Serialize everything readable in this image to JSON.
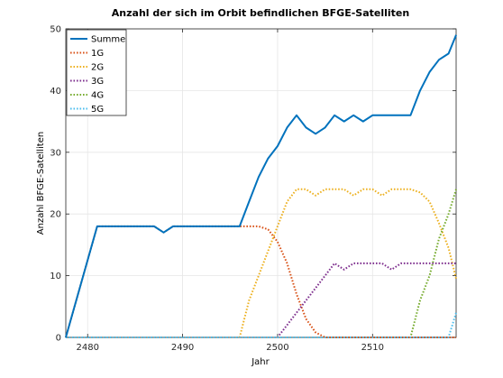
{
  "chart_data": {
    "type": "line",
    "title": "Anzahl der sich im Orbit befindlichen BFGE-Satelliten",
    "xlabel": "Jahr",
    "ylabel": "Anzahl BFGE-Satelliten",
    "xlim": [
      2477.7,
      2518.8
    ],
    "ylim": [
      0,
      50
    ],
    "xticks": [
      2480,
      2490,
      2500,
      2510
    ],
    "yticks": [
      0,
      10,
      20,
      30,
      40,
      50
    ],
    "grid": true,
    "legend_position": "top-left",
    "series": [
      {
        "name": "Summe",
        "color": "#0072BD",
        "style": "solid",
        "x": [
          2477.7,
          2481,
          2482,
          2483,
          2484,
          2485,
          2486,
          2487,
          2488,
          2489,
          2490,
          2491,
          2492,
          2493,
          2494,
          2495,
          2496,
          2497,
          2498,
          2499,
          2500,
          2501,
          2502,
          2503,
          2504,
          2505,
          2506,
          2507,
          2508,
          2509,
          2510,
          2511,
          2512,
          2513,
          2514,
          2515,
          2516,
          2517,
          2518,
          2518.8
        ],
        "y": [
          0,
          18,
          18,
          18,
          18,
          18,
          18,
          18,
          17,
          18,
          18,
          18,
          18,
          18,
          18,
          18,
          18,
          22,
          26,
          29,
          31,
          34,
          36,
          34,
          33,
          34,
          36,
          35,
          36,
          35,
          36,
          36,
          36,
          36,
          36,
          40,
          43,
          45,
          46,
          49
        ]
      },
      {
        "name": "1G",
        "color": "#D95319",
        "style": "dotted",
        "x": [
          2477.7,
          2481,
          2487,
          2488,
          2489,
          2495,
          2498,
          2499,
          2500,
          2501,
          2502,
          2503,
          2504,
          2505,
          2518.8
        ],
        "y": [
          0,
          18,
          18,
          17,
          18,
          18,
          18,
          17.5,
          15.5,
          12,
          7,
          3,
          0.8,
          0,
          0
        ]
      },
      {
        "name": "2G",
        "color": "#EDB120",
        "style": "dotted",
        "x": [
          2477.7,
          2496,
          2497,
          2498,
          2499,
          2500,
          2501,
          2502,
          2503,
          2504,
          2505,
          2506,
          2507,
          2508,
          2509,
          2510,
          2511,
          2512,
          2513,
          2514,
          2515,
          2516,
          2517,
          2518,
          2518.8
        ],
        "y": [
          0,
          0,
          6,
          10,
          14,
          18,
          22,
          24,
          24,
          23,
          24,
          24,
          24,
          23,
          24,
          24,
          23,
          24,
          24,
          24,
          23.5,
          22,
          18.5,
          14.5,
          9.5
        ]
      },
      {
        "name": "3G",
        "color": "#7E2F8E",
        "style": "dotted",
        "x": [
          2477.7,
          2500,
          2501,
          2502,
          2503,
          2504,
          2505,
          2506,
          2507,
          2508,
          2509,
          2510,
          2511,
          2512,
          2513,
          2514,
          2515,
          2516,
          2517,
          2518,
          2518.8
        ],
        "y": [
          0,
          0,
          2,
          4,
          6,
          8,
          10,
          12,
          11,
          12,
          12,
          12,
          12,
          11,
          12,
          12,
          12,
          12,
          12,
          12,
          12
        ]
      },
      {
        "name": "4G",
        "color": "#77AC30",
        "style": "dotted",
        "x": [
          2477.7,
          2514,
          2515,
          2516,
          2517,
          2518,
          2518.8
        ],
        "y": [
          0,
          0,
          6,
          10,
          16,
          20,
          24
        ]
      },
      {
        "name": "5G",
        "color": "#4DBEEE",
        "style": "dotted",
        "x": [
          2477.7,
          2518,
          2518.8
        ],
        "y": [
          0,
          0,
          4
        ]
      }
    ]
  }
}
